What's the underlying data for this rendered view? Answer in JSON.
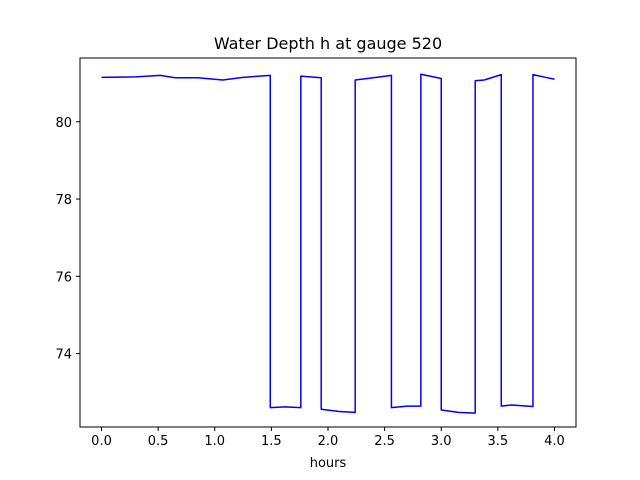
{
  "chart_data": {
    "type": "line",
    "title": "Water Depth h at gauge 520",
    "xlabel": "hours",
    "ylabel": "",
    "xlim": [
      -0.19,
      4.19
    ],
    "ylim": [
      72.1,
      81.65
    ],
    "xticks": [
      0.0,
      0.5,
      1.0,
      1.5,
      2.0,
      2.5,
      3.0,
      3.5,
      4.0
    ],
    "xtick_labels": [
      "0.0",
      "0.5",
      "1.0",
      "1.5",
      "2.0",
      "2.5",
      "3.0",
      "3.5",
      "4.0"
    ],
    "yticks": [
      74,
      76,
      78,
      80
    ],
    "ytick_labels": [
      "74",
      "76",
      "78",
      "80"
    ],
    "grid": false,
    "series": [
      {
        "color": "#0000ff",
        "x": [
          0.0,
          0.3,
          0.52,
          0.65,
          0.85,
          1.07,
          1.25,
          1.49,
          1.49,
          1.62,
          1.76,
          1.76,
          1.94,
          1.94,
          2.1,
          2.24,
          2.24,
          2.4,
          2.56,
          2.56,
          2.7,
          2.82,
          2.82,
          3.0,
          3.0,
          3.15,
          3.3,
          3.3,
          3.38,
          3.53,
          3.53,
          3.62,
          3.81,
          3.81,
          3.92,
          4.0
        ],
        "y": [
          81.15,
          81.16,
          81.2,
          81.14,
          81.14,
          81.08,
          81.15,
          81.2,
          72.6,
          72.62,
          72.6,
          81.18,
          81.14,
          72.56,
          72.5,
          72.48,
          81.08,
          81.14,
          81.2,
          72.6,
          72.64,
          72.64,
          81.23,
          81.12,
          72.54,
          72.48,
          72.46,
          81.06,
          81.08,
          81.22,
          72.64,
          72.67,
          72.63,
          81.22,
          81.15,
          81.1
        ]
      }
    ]
  }
}
